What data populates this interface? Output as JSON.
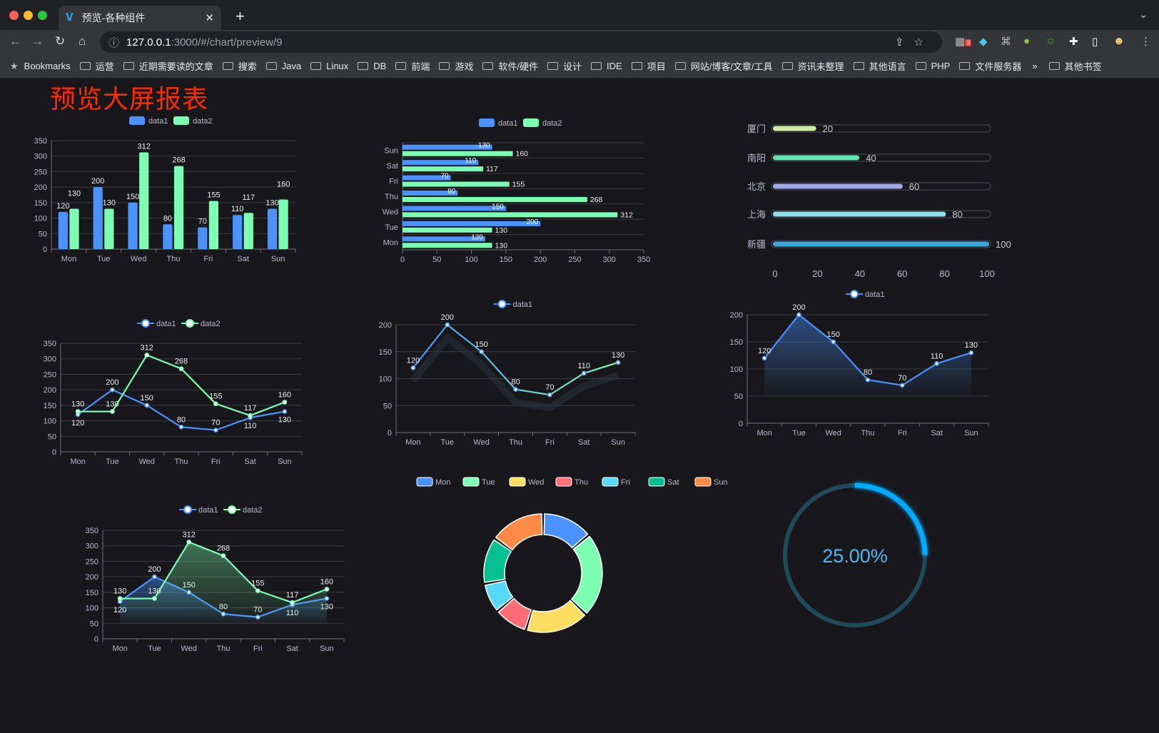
{
  "browser": {
    "tab_title": "预览-各种组件",
    "url_host": "127.0.0.1",
    "url_path": ":3000/#/chart/preview/9",
    "extension_badge": "9",
    "bookmarks_label": "Bookmarks",
    "bookmark_folders": [
      "运营",
      "近期需要读的文章",
      "搜索",
      "Java",
      "Linux",
      "DB",
      "前端",
      "游戏",
      "软件/硬件",
      "设计",
      "IDE",
      "项目",
      "网站/博客/文章/工具",
      "资讯未整理",
      "其他语言",
      "PHP",
      "文件服务器"
    ],
    "more": "»",
    "other_bookmarks": "其他书签"
  },
  "page": {
    "title": "预览大屏报表",
    "title_color": "#ff2a00",
    "background": "#18181c"
  },
  "colors": {
    "data1": "#4992ff",
    "data2": "#7cffb2"
  },
  "chart_data": [
    {
      "type": "bar",
      "id": "bar",
      "categories": [
        "Mon",
        "Tue",
        "Wed",
        "Thu",
        "Fri",
        "Sat",
        "Sun"
      ],
      "series": [
        {
          "name": "data1",
          "values": [
            120,
            200,
            150,
            80,
            70,
            110,
            130
          ]
        },
        {
          "name": "data2",
          "values": [
            130,
            130,
            312,
            268,
            155,
            117,
            160
          ]
        }
      ],
      "ylim": [
        0,
        350
      ],
      "yticks": [
        0,
        50,
        100,
        150,
        200,
        250,
        300,
        350
      ],
      "legend": "top",
      "grid": true
    },
    {
      "type": "bar",
      "orientation": "horizontal",
      "id": "hbar",
      "categories": [
        "Mon",
        "Tue",
        "Wed",
        "Thu",
        "Fri",
        "Sat",
        "Sun"
      ],
      "series": [
        {
          "name": "data1",
          "values": [
            120,
            200,
            150,
            80,
            70,
            110,
            130
          ]
        },
        {
          "name": "data2",
          "values": [
            130,
            130,
            312,
            268,
            155,
            117,
            160
          ]
        }
      ],
      "xlim": [
        0,
        350
      ],
      "xticks": [
        0,
        50,
        100,
        150,
        200,
        250,
        300,
        350
      ],
      "legend": "top",
      "grid": true
    },
    {
      "type": "bar",
      "subtype": "progress",
      "id": "progress",
      "categories": [
        "厦门",
        "南阳",
        "北京",
        "上海",
        "新疆"
      ],
      "values": [
        20,
        40,
        60,
        80,
        100
      ],
      "colors": [
        "#cdf0a0",
        "#5fe3b0",
        "#9ea6e8",
        "#8fe0e8",
        "#3ba9dc"
      ],
      "xlim": [
        0,
        100
      ],
      "xticks": [
        0,
        20,
        40,
        60,
        80,
        100
      ]
    },
    {
      "type": "line",
      "id": "line2",
      "categories": [
        "Mon",
        "Tue",
        "Wed",
        "Thu",
        "Fri",
        "Sat",
        "Sun"
      ],
      "series": [
        {
          "name": "data1",
          "values": [
            120,
            200,
            150,
            80,
            70,
            110,
            130
          ]
        },
        {
          "name": "data2",
          "values": [
            130,
            130,
            312,
            268,
            155,
            117,
            160
          ]
        }
      ],
      "ylim": [
        0,
        350
      ],
      "yticks": [
        0,
        50,
        100,
        150,
        200,
        250,
        300,
        350
      ],
      "legend": "top",
      "grid": true
    },
    {
      "type": "line",
      "id": "line1",
      "categories": [
        "Mon",
        "Tue",
        "Wed",
        "Thu",
        "Fri",
        "Sat",
        "Sun"
      ],
      "series": [
        {
          "name": "data1",
          "values": [
            120,
            200,
            150,
            80,
            70,
            110,
            130
          ]
        }
      ],
      "ylim": [
        0,
        200
      ],
      "yticks": [
        0,
        50,
        100,
        150,
        200
      ],
      "legend": "top",
      "grid": true,
      "gradient_line": [
        "#4992ff",
        "#7cffb2"
      ]
    },
    {
      "type": "area",
      "id": "area1",
      "categories": [
        "Mon",
        "Tue",
        "Wed",
        "Thu",
        "Fri",
        "Sat",
        "Sun"
      ],
      "series": [
        {
          "name": "data1",
          "values": [
            120,
            200,
            150,
            80,
            70,
            110,
            130
          ]
        }
      ],
      "ylim": [
        0,
        200
      ],
      "yticks": [
        0,
        50,
        100,
        150,
        200
      ],
      "legend": "top",
      "grid": true
    },
    {
      "type": "area",
      "id": "area2",
      "categories": [
        "Mon",
        "Tue",
        "Wed",
        "Thu",
        "Fri",
        "Sat",
        "Sun"
      ],
      "series": [
        {
          "name": "data1",
          "values": [
            120,
            200,
            150,
            80,
            70,
            110,
            130
          ]
        },
        {
          "name": "data2",
          "values": [
            130,
            130,
            312,
            268,
            155,
            117,
            160
          ]
        }
      ],
      "ylim": [
        0,
        350
      ],
      "yticks": [
        0,
        50,
        100,
        150,
        200,
        250,
        300,
        350
      ],
      "legend": "top",
      "grid": true
    },
    {
      "type": "pie",
      "subtype": "donut",
      "id": "donut",
      "categories": [
        "Mon",
        "Tue",
        "Wed",
        "Thu",
        "Fri",
        "Sat",
        "Sun"
      ],
      "values": [
        120,
        200,
        150,
        80,
        70,
        110,
        130
      ],
      "colors": [
        "#4992ff",
        "#7cffb2",
        "#fddd60",
        "#ff6e76",
        "#58d9f9",
        "#05c091",
        "#ff8a45"
      ],
      "legend": "top"
    },
    {
      "type": "gauge",
      "id": "gauge",
      "value": 25,
      "label": "25.00%",
      "color": "#00aaff",
      "track_color": "#1f4a5a"
    }
  ]
}
